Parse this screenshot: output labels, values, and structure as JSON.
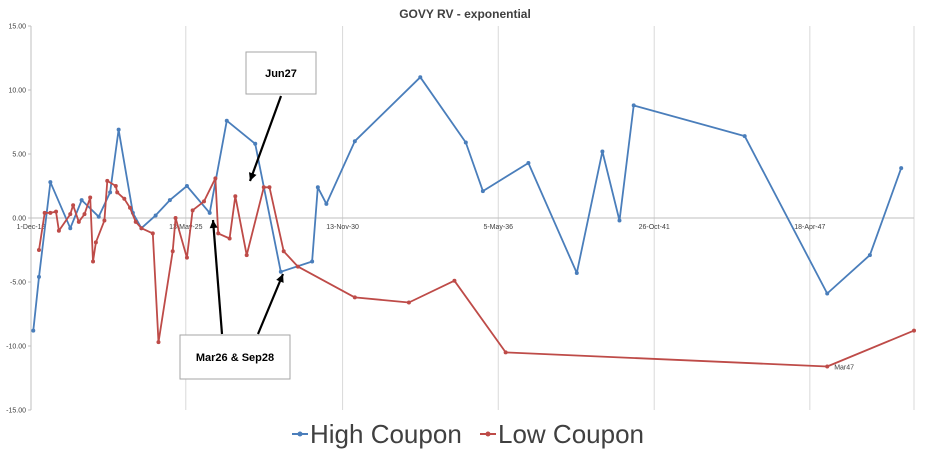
{
  "chart_data": {
    "type": "line",
    "title": "GOVY RV - exponential",
    "ylim": [
      -15,
      15
    ],
    "yticks": [
      "15.00",
      "10.00",
      "5.00",
      "0.00",
      "-5.00",
      "-10.00",
      "-15.00"
    ],
    "xticks": [
      {
        "label": "1-Dec-19",
        "t": 2019.92
      },
      {
        "label": "13-May-25",
        "t": 2025.36
      },
      {
        "label": "13-Nov-30",
        "t": 2030.87
      },
      {
        "label": "5-May-36",
        "t": 2036.34
      },
      {
        "label": "26-Oct-41",
        "t": 2041.82
      },
      {
        "label": "18-Apr-47",
        "t": 2047.29
      }
    ],
    "xlim": [
      2019.92,
      2050.95
    ],
    "grid": "vertical",
    "legend_position": "bottom",
    "series": [
      {
        "name": "High Coupon",
        "color": "#4a7ebb",
        "points": [
          [
            2020.0,
            -8.8
          ],
          [
            2020.2,
            -4.6
          ],
          [
            2020.6,
            2.8
          ],
          [
            2021.3,
            -0.8
          ],
          [
            2021.7,
            1.4
          ],
          [
            2022.3,
            0.1
          ],
          [
            2022.7,
            2.0
          ],
          [
            2023.0,
            6.9
          ],
          [
            2023.5,
            0.4
          ],
          [
            2023.8,
            -0.8
          ],
          [
            2024.3,
            0.2
          ],
          [
            2024.8,
            1.4
          ],
          [
            2025.4,
            2.5
          ],
          [
            2026.2,
            0.4
          ],
          [
            2026.8,
            7.6
          ],
          [
            2027.8,
            5.8
          ],
          [
            2028.7,
            -4.2
          ],
          [
            2029.8,
            -3.4
          ],
          [
            2030.0,
            2.4
          ],
          [
            2030.3,
            1.1
          ],
          [
            2031.3,
            6.0
          ],
          [
            2033.6,
            11.0
          ],
          [
            2035.2,
            5.9
          ],
          [
            2035.8,
            2.1
          ],
          [
            2037.4,
            4.3
          ],
          [
            2039.1,
            -4.3
          ],
          [
            2040.0,
            5.2
          ],
          [
            2040.6,
            -0.2
          ],
          [
            2041.1,
            8.8
          ],
          [
            2045.0,
            6.4
          ],
          [
            2047.9,
            -5.9
          ],
          [
            2049.4,
            -2.9
          ],
          [
            2050.5,
            3.9
          ]
        ]
      },
      {
        "name": "Low Coupon",
        "color": "#be4b48",
        "points": [
          [
            2020.2,
            -2.5
          ],
          [
            2020.4,
            0.4
          ],
          [
            2020.6,
            0.4
          ],
          [
            2020.8,
            0.5
          ],
          [
            2020.9,
            -1.0
          ],
          [
            2021.3,
            0.3
          ],
          [
            2021.4,
            1.0
          ],
          [
            2021.6,
            -0.3
          ],
          [
            2021.8,
            0.3
          ],
          [
            2022.0,
            1.6
          ],
          [
            2022.1,
            -3.4
          ],
          [
            2022.2,
            -1.9
          ],
          [
            2022.5,
            -0.2
          ],
          [
            2022.6,
            2.9
          ],
          [
            2022.9,
            2.5
          ],
          [
            2022.95,
            2.0
          ],
          [
            2023.2,
            1.5
          ],
          [
            2023.4,
            0.8
          ],
          [
            2023.6,
            -0.3
          ],
          [
            2023.8,
            -0.8
          ],
          [
            2024.2,
            -1.2
          ],
          [
            2024.4,
            -9.7
          ],
          [
            2024.9,
            -2.6
          ],
          [
            2025.0,
            0.0
          ],
          [
            2025.4,
            -3.1
          ],
          [
            2025.6,
            0.6
          ],
          [
            2026.0,
            1.3
          ],
          [
            2026.4,
            3.1
          ],
          [
            2026.5,
            -1.2
          ],
          [
            2026.9,
            -1.6
          ],
          [
            2027.1,
            1.7
          ],
          [
            2027.5,
            -2.9
          ],
          [
            2028.1,
            2.4
          ],
          [
            2028.3,
            2.4
          ],
          [
            2028.8,
            -2.6
          ],
          [
            2029.3,
            -3.8
          ],
          [
            2031.3,
            -6.2
          ],
          [
            2033.2,
            -6.6
          ],
          [
            2034.8,
            -4.9
          ],
          [
            2036.6,
            -10.5
          ],
          [
            2047.9,
            -11.6
          ],
          [
            2050.95,
            -8.8
          ]
        ]
      }
    ],
    "annotations": [
      {
        "text": "Jun27"
      },
      {
        "text": "Mar26 & Sep28"
      },
      {
        "text": "Mar47"
      }
    ]
  }
}
